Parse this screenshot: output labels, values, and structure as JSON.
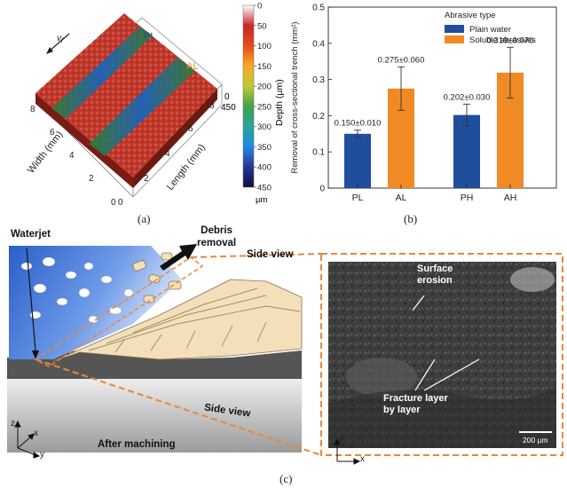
{
  "panel_a": {
    "label": "(a)",
    "pl_tag": "PL",
    "al_tag": "AL",
    "direction_label": "v",
    "direction_sub": "f",
    "width_axis": "Width (mm)",
    "length_axis": "Length (mm)",
    "width_ticks": [
      "0",
      "2",
      "4",
      "6",
      "8"
    ],
    "length_ticks": [
      "0",
      "2",
      "4",
      "6",
      "8"
    ],
    "depth_ticks": [
      "0",
      "450"
    ],
    "colorbar": {
      "title": "Depth (µm)",
      "ticks": [
        "0",
        "50",
        "100",
        "150",
        "200",
        "250",
        "300",
        "350",
        "400",
        "450"
      ],
      "unit": "µm",
      "colors": [
        "#ffffff",
        "#c62828",
        "#e64a19",
        "#f9a825",
        "#c0ca33",
        "#43a047",
        "#26a69a",
        "#1e88e5",
        "#283593",
        "#0d1040"
      ]
    }
  },
  "panel_b": {
    "label": "(b)"
  },
  "chart_data": {
    "type": "bar",
    "ylabel": "Removal of cross-sectional trench (mm²)",
    "ylim": [
      0,
      0.5
    ],
    "yticks": [
      "0",
      "0.1",
      "0.2",
      "0.3",
      "0.4",
      "0.5"
    ],
    "categories": [
      "PL",
      "AL",
      "PH",
      "AH"
    ],
    "values": [
      0.15,
      0.275,
      0.202,
      0.319
    ],
    "errors": [
      0.01,
      0.06,
      0.03,
      0.07
    ],
    "value_labels": [
      "0.150±0.010",
      "0.275±0.060",
      "0.202±0.030",
      "0.319±0.070"
    ],
    "series_index": [
      0,
      1,
      0,
      1
    ],
    "series": [
      {
        "name": "Plain water",
        "color": "#1f4e9c"
      },
      {
        "name": "Soluble abrasives",
        "color": "#f08a24"
      }
    ],
    "legend_title": "Abrasive type",
    "legend_position": "top-right",
    "grid": false
  },
  "panel_c": {
    "label": "(c)",
    "waterjet": "Waterjet",
    "debris_line1": "Debris",
    "debris_line2": "removal",
    "side_view_top": "Side view",
    "side_view_bottom": "Side view",
    "after_machining": "After machining",
    "axes_left": {
      "z": "z",
      "x": "x",
      "y": "y"
    },
    "axes_sem": {
      "y": "y",
      "x": "x"
    },
    "sem": {
      "surface_line1": "Surface",
      "surface_line2": "erosion",
      "fracture_line1": "Fracture layer",
      "fracture_line2": "by layer",
      "scale_bar": "200 µm"
    },
    "colors": {
      "callout": "#e9873a",
      "water": "#3a6fd0",
      "material": "#f3dfba"
    }
  }
}
